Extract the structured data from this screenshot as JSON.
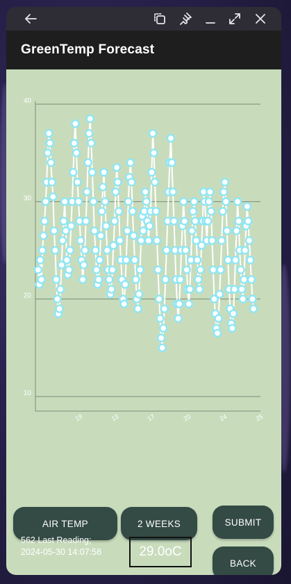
{
  "window": {
    "title_icons": [
      "back-arrow-icon",
      "restore-window-icon",
      "pin-icon",
      "minimize-icon",
      "maximize-icon",
      "close-icon"
    ]
  },
  "app": {
    "title": "GreenTemp Forecast"
  },
  "buttons": {
    "air_temp": "AIR TEMP",
    "two_weeks": "2 WEEKS",
    "submit": "SUBMIT",
    "back": "BACK"
  },
  "reading": {
    "label": "562 Last Reading;\n2024-05-30 14:07:58",
    "value": "29.0oC"
  },
  "colors": {
    "background": "#c8dcbc",
    "button": "#344a44",
    "marker": "#8fe6f5",
    "line": "#ffffff"
  },
  "chart_data": {
    "type": "line",
    "ylim": [
      8.5,
      40
    ],
    "yticks": [
      10,
      20,
      30,
      40
    ],
    "xtick_labels": [
      "19",
      "13",
      "17",
      "20",
      "24",
      "25"
    ],
    "grid": "horizontal",
    "series": [
      {
        "values": [
          23,
          21.5,
          24,
          22,
          25,
          26.5,
          28,
          30,
          32,
          35,
          37,
          36,
          34,
          32,
          30.5,
          27,
          25,
          22,
          20,
          18.5,
          19,
          21,
          23.5,
          26,
          28,
          30,
          27,
          24,
          22.5,
          23,
          25,
          27.5,
          30,
          33,
          36,
          38,
          35,
          32,
          30,
          28,
          26,
          24,
          22,
          23.5,
          25,
          28,
          31,
          34,
          37,
          38.5,
          36,
          33,
          30,
          27,
          25,
          23,
          21.5,
          22,
          24,
          26.5,
          29,
          31.5,
          33,
          30,
          27.5,
          25,
          23,
          22,
          20.5,
          21,
          23,
          25.5,
          28,
          31,
          33.5,
          32,
          29,
          26,
          24,
          22,
          20,
          19.5,
          21.5,
          24,
          27,
          30,
          32.5,
          34,
          32,
          29,
          26.5,
          24,
          22,
          20,
          19,
          20.5,
          23,
          26,
          28.5,
          27,
          29,
          31,
          30,
          28,
          26,
          27.5,
          29,
          33,
          37,
          35,
          32,
          29,
          26,
          23,
          20,
          18,
          16,
          15,
          17,
          19,
          22,
          25,
          28,
          31,
          34,
          36.5,
          34,
          31,
          28,
          25,
          22,
          19.5,
          18,
          19.5,
          22,
          25,
          27.5,
          30,
          28,
          25,
          23,
          21,
          19.5,
          21,
          24,
          27,
          29,
          30,
          28,
          26,
          24,
          22,
          21,
          23,
          25.5,
          28,
          31,
          30,
          28,
          26,
          28,
          30,
          31,
          29,
          26,
          23,
          20,
          18.5,
          17,
          16.5,
          18,
          20.5,
          23,
          26,
          29,
          31,
          32,
          30,
          27,
          24,
          21,
          19,
          17.5,
          17,
          18.5,
          21,
          24,
          27,
          30,
          28,
          25,
          23,
          21,
          20,
          22,
          25,
          27.5,
          29.5,
          28,
          26,
          24,
          22,
          20,
          19
        ]
      }
    ]
  }
}
